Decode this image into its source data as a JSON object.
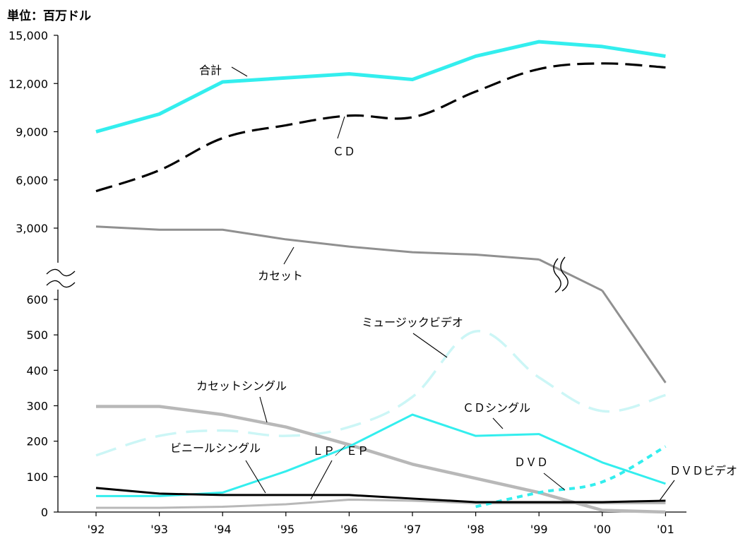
{
  "unit_label": "単位：百万ドル",
  "chart_data": {
    "type": "line",
    "categories": [
      "'92",
      "'93",
      "'94",
      "'95",
      "'96",
      "'97",
      "'98",
      "'99",
      "'00",
      "'01"
    ],
    "upper_axis": {
      "ticks": [
        "15,000",
        "12,000",
        "9,000",
        "6,000",
        "3,000"
      ],
      "tick_values": [
        15000,
        12000,
        9000,
        6000,
        3000
      ],
      "range": [
        0,
        15000
      ]
    },
    "lower_axis": {
      "ticks": [
        "600",
        "500",
        "400",
        "300",
        "200",
        "100",
        "0"
      ],
      "tick_values": [
        600,
        500,
        400,
        300,
        200,
        100,
        0
      ],
      "range": [
        0,
        700
      ]
    },
    "axis_break": true,
    "series": [
      {
        "name": "合計",
        "panel": "upper",
        "color": "#33eeee",
        "values": [
          9000,
          10100,
          12100,
          12350,
          12600,
          12250,
          13700,
          14600,
          14300,
          13700
        ]
      },
      {
        "name": "ＣＤ",
        "panel": "upper",
        "color": "#000000",
        "values": [
          5300,
          6600,
          8600,
          9400,
          10000,
          9900,
          11500,
          12900,
          13250,
          13000
        ]
      },
      {
        "name": "カセット",
        "panel": "upper",
        "color": "#909090",
        "values": [
          3100,
          2900,
          2900,
          2300,
          1850,
          1500,
          1350,
          1050,
          null,
          null
        ]
      },
      {
        "name": "カセット_lower",
        "panel": "lower",
        "color": "#909090",
        "values": [
          null,
          null,
          null,
          null,
          null,
          null,
          null,
          null,
          625,
          365
        ]
      },
      {
        "name": "ミュージックビデオ",
        "panel": "lower",
        "color": "#ccf6f6",
        "values": [
          160,
          215,
          230,
          215,
          240,
          325,
          510,
          380,
          285,
          330
        ]
      },
      {
        "name": "カセットシングル",
        "panel": "lower",
        "color": "#b8b8b8",
        "values": [
          298,
          298,
          275,
          240,
          190,
          135,
          95,
          55,
          5,
          0
        ]
      },
      {
        "name": "ＣＤシングル",
        "panel": "lower",
        "color": "#33eeee",
        "values": [
          45,
          45,
          55,
          115,
          185,
          275,
          215,
          220,
          140,
          80
        ]
      },
      {
        "name": "ビニールシングル",
        "panel": "lower",
        "color": "#000000",
        "values": [
          68,
          52,
          48,
          48,
          48,
          38,
          28,
          28,
          28,
          32
        ]
      },
      {
        "name": "ＬＰ／ＥＰ",
        "panel": "lower",
        "color": "#b8b8b8",
        "values": [
          12,
          12,
          15,
          22,
          35,
          32,
          25,
          25,
          25,
          25
        ]
      },
      {
        "name": "ＤＶＤ",
        "panel": "lower",
        "color": "#33eeee",
        "values": [
          null,
          null,
          null,
          null,
          null,
          null,
          15,
          55,
          85,
          185
        ]
      },
      {
        "name": "ＤＶＤビデオ",
        "panel": "lower",
        "color": "#000000",
        "values": [
          null,
          null,
          null,
          null,
          null,
          null,
          null,
          null,
          null,
          32
        ]
      }
    ],
    "annotations": [
      "合計",
      "ＣＤ",
      "カセット",
      "ミュージックビデオ",
      "カセットシングル",
      "ＣＤシングル",
      "ビニールシングル",
      "ＬＰ／ＥＰ",
      "ＤＶＤ",
      "ＤＶＤビデオ"
    ]
  }
}
